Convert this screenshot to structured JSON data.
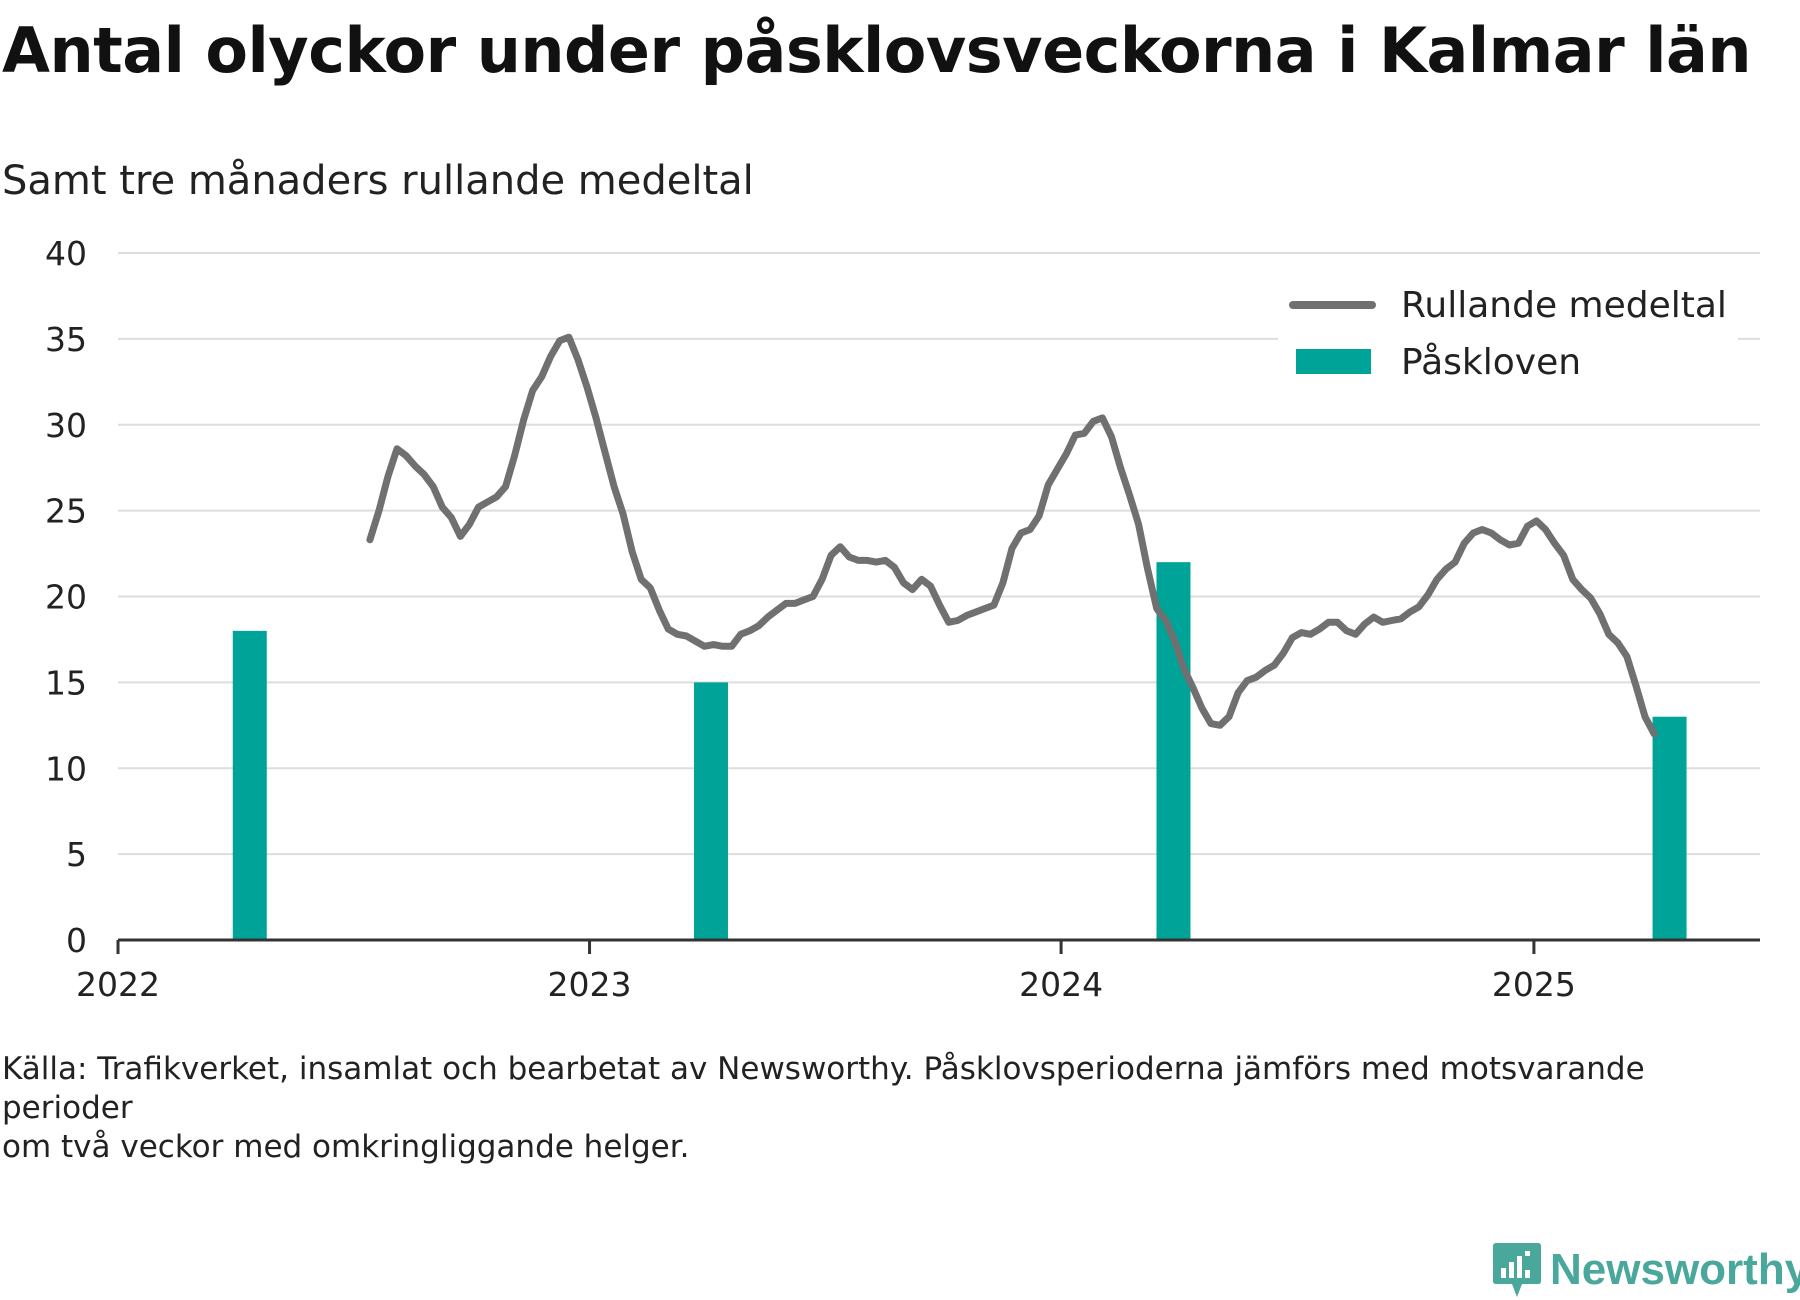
{
  "title": "Antal olyckor under påsklovsveckorna i Kalmar län",
  "subtitle": "Samt tre månaders rullande medeltal",
  "footnote": {
    "line1": "Källa: Trafikverket, insamlat och bearbetat av Newsworthy. Påsklovsperioderna jämförs med motsvarande perioder",
    "line2": "om två veckor med omkringliggande helger."
  },
  "logo": {
    "text": "Newsworthy",
    "icon": "newsworthy-logo-icon",
    "color": "#4aa79b"
  },
  "colors": {
    "line": "#707070",
    "bar": "#00a398",
    "grid": "#dddddd",
    "axis": "#333333"
  },
  "chart_data": {
    "type": "bar+line",
    "y_ticks": [
      0,
      5,
      10,
      15,
      20,
      25,
      30,
      35,
      40
    ],
    "ylim": [
      0,
      40
    ],
    "x_ticks": [
      "2022",
      "2023",
      "2024",
      "2025"
    ],
    "xlim": [
      "2022-01-01",
      "2025-06-25"
    ],
    "grid": "horizontal",
    "legend_position": "top-right",
    "legend": [
      {
        "label": "Rullande medeltal",
        "kind": "line"
      },
      {
        "label": "Påskloven",
        "kind": "bar"
      }
    ],
    "bars": {
      "name": "Påskloven",
      "points": [
        {
          "date": "2022-04-13",
          "value": 18
        },
        {
          "date": "2023-04-05",
          "value": 15
        },
        {
          "date": "2024-03-28",
          "value": 22
        },
        {
          "date": "2025-04-16",
          "value": 13
        }
      ]
    },
    "line": {
      "name": "Rullande medeltal",
      "points": [
        [
          "2022-07-15",
          23.3
        ],
        [
          "2022-07-22",
          25.0
        ],
        [
          "2022-07-29",
          27.0
        ],
        [
          "2022-08-05",
          28.6
        ],
        [
          "2022-08-12",
          28.2
        ],
        [
          "2022-08-19",
          27.6
        ],
        [
          "2022-08-26",
          27.1
        ],
        [
          "2022-09-02",
          26.4
        ],
        [
          "2022-09-09",
          25.2
        ],
        [
          "2022-09-16",
          24.6
        ],
        [
          "2022-09-23",
          23.5
        ],
        [
          "2022-09-30",
          24.2
        ],
        [
          "2022-10-07",
          25.2
        ],
        [
          "2022-10-14",
          25.5
        ],
        [
          "2022-10-21",
          25.8
        ],
        [
          "2022-10-28",
          26.4
        ],
        [
          "2022-11-04",
          28.2
        ],
        [
          "2022-11-11",
          30.3
        ],
        [
          "2022-11-18",
          32.0
        ],
        [
          "2022-11-25",
          32.8
        ],
        [
          "2022-12-02",
          34.0
        ],
        [
          "2022-12-09",
          34.9
        ],
        [
          "2022-12-16",
          35.1
        ],
        [
          "2022-12-23",
          33.8
        ],
        [
          "2022-12-30",
          32.2
        ],
        [
          "2023-01-06",
          30.4
        ],
        [
          "2023-01-13",
          28.4
        ],
        [
          "2023-01-20",
          26.4
        ],
        [
          "2023-01-27",
          24.8
        ],
        [
          "2023-02-03",
          22.6
        ],
        [
          "2023-02-10",
          21.0
        ],
        [
          "2023-02-17",
          20.5
        ],
        [
          "2023-02-24",
          19.2
        ],
        [
          "2023-03-03",
          18.1
        ],
        [
          "2023-03-10",
          17.8
        ],
        [
          "2023-03-17",
          17.7
        ],
        [
          "2023-03-24",
          17.4
        ],
        [
          "2023-03-31",
          17.1
        ],
        [
          "2023-04-07",
          17.2
        ],
        [
          "2023-04-14",
          17.1
        ],
        [
          "2023-04-21",
          17.1
        ],
        [
          "2023-04-28",
          17.8
        ],
        [
          "2023-05-05",
          18.0
        ],
        [
          "2023-05-12",
          18.3
        ],
        [
          "2023-05-19",
          18.8
        ],
        [
          "2023-05-26",
          19.2
        ],
        [
          "2023-06-02",
          19.6
        ],
        [
          "2023-06-09",
          19.6
        ],
        [
          "2023-06-16",
          19.8
        ],
        [
          "2023-06-23",
          20.0
        ],
        [
          "2023-06-30",
          21.0
        ],
        [
          "2023-07-07",
          22.4
        ],
        [
          "2023-07-14",
          22.9
        ],
        [
          "2023-07-21",
          22.3
        ],
        [
          "2023-07-28",
          22.1
        ],
        [
          "2023-08-04",
          22.1
        ],
        [
          "2023-08-11",
          22.0
        ],
        [
          "2023-08-18",
          22.1
        ],
        [
          "2023-08-25",
          21.7
        ],
        [
          "2023-09-01",
          20.8
        ],
        [
          "2023-09-08",
          20.4
        ],
        [
          "2023-09-15",
          21.0
        ],
        [
          "2023-09-22",
          20.6
        ],
        [
          "2023-09-29",
          19.5
        ],
        [
          "2023-10-06",
          18.5
        ],
        [
          "2023-10-13",
          18.6
        ],
        [
          "2023-10-20",
          18.9
        ],
        [
          "2023-10-27",
          19.1
        ],
        [
          "2023-11-03",
          19.3
        ],
        [
          "2023-11-10",
          19.5
        ],
        [
          "2023-11-17",
          20.8
        ],
        [
          "2023-11-24",
          22.8
        ],
        [
          "2023-12-01",
          23.7
        ],
        [
          "2023-12-08",
          23.9
        ],
        [
          "2023-12-15",
          24.7
        ],
        [
          "2023-12-22",
          26.5
        ],
        [
          "2023-12-29",
          27.4
        ],
        [
          "2024-01-05",
          28.3
        ],
        [
          "2024-01-12",
          29.4
        ],
        [
          "2024-01-19",
          29.5
        ],
        [
          "2024-01-26",
          30.2
        ],
        [
          "2024-02-02",
          30.4
        ],
        [
          "2024-02-09",
          29.3
        ],
        [
          "2024-02-16",
          27.5
        ],
        [
          "2024-02-23",
          25.9
        ],
        [
          "2024-03-01",
          24.2
        ],
        [
          "2024-03-08",
          21.6
        ],
        [
          "2024-03-15",
          19.3
        ],
        [
          "2024-03-22",
          18.6
        ],
        [
          "2024-03-29",
          17.4
        ],
        [
          "2024-04-05",
          15.8
        ],
        [
          "2024-04-12",
          14.7
        ],
        [
          "2024-04-19",
          13.5
        ],
        [
          "2024-04-26",
          12.6
        ],
        [
          "2024-05-03",
          12.5
        ],
        [
          "2024-05-10",
          13.0
        ],
        [
          "2024-05-17",
          14.4
        ],
        [
          "2024-05-24",
          15.1
        ],
        [
          "2024-05-31",
          15.3
        ],
        [
          "2024-06-07",
          15.7
        ],
        [
          "2024-06-14",
          16.0
        ],
        [
          "2024-06-21",
          16.7
        ],
        [
          "2024-06-28",
          17.6
        ],
        [
          "2024-07-05",
          17.9
        ],
        [
          "2024-07-12",
          17.8
        ],
        [
          "2024-07-19",
          18.1
        ],
        [
          "2024-07-26",
          18.5
        ],
        [
          "2024-08-02",
          18.5
        ],
        [
          "2024-08-09",
          18.0
        ],
        [
          "2024-08-16",
          17.8
        ],
        [
          "2024-08-23",
          18.4
        ],
        [
          "2024-08-30",
          18.8
        ],
        [
          "2024-09-06",
          18.5
        ],
        [
          "2024-09-13",
          18.6
        ],
        [
          "2024-09-20",
          18.7
        ],
        [
          "2024-09-27",
          19.1
        ],
        [
          "2024-10-04",
          19.4
        ],
        [
          "2024-10-11",
          20.1
        ],
        [
          "2024-10-18",
          21.0
        ],
        [
          "2024-10-25",
          21.6
        ],
        [
          "2024-11-01",
          22.0
        ],
        [
          "2024-11-08",
          23.1
        ],
        [
          "2024-11-15",
          23.7
        ],
        [
          "2024-11-22",
          23.9
        ],
        [
          "2024-11-29",
          23.7
        ],
        [
          "2024-12-06",
          23.3
        ],
        [
          "2024-12-13",
          23.0
        ],
        [
          "2024-12-20",
          23.1
        ],
        [
          "2024-12-27",
          24.1
        ],
        [
          "2025-01-03",
          24.4
        ],
        [
          "2025-01-10",
          23.9
        ],
        [
          "2025-01-17",
          23.1
        ],
        [
          "2025-01-24",
          22.4
        ],
        [
          "2025-01-31",
          21.0
        ],
        [
          "2025-02-07",
          20.4
        ],
        [
          "2025-02-14",
          19.9
        ],
        [
          "2025-02-21",
          19.0
        ],
        [
          "2025-02-28",
          17.8
        ],
        [
          "2025-03-07",
          17.3
        ],
        [
          "2025-03-14",
          16.5
        ],
        [
          "2025-03-21",
          14.8
        ],
        [
          "2025-03-28",
          13.0
        ],
        [
          "2025-04-04",
          12.0
        ]
      ]
    }
  }
}
